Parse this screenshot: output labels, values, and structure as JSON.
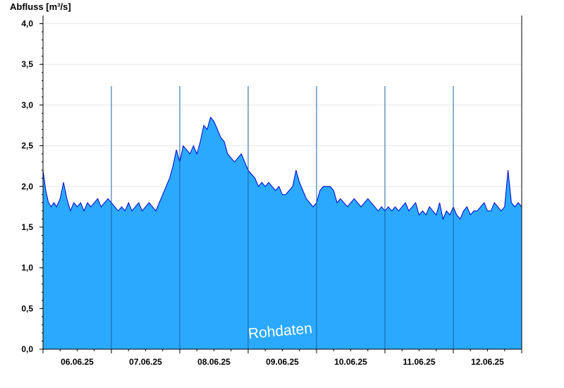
{
  "chart_data": {
    "type": "area",
    "title": "",
    "ylabel": "Abfluss [m³/s]",
    "xlabel": "",
    "watermark": "Rohdaten",
    "ylim": [
      0,
      4.1
    ],
    "yticks": [
      {
        "value": 0.0,
        "label": "0,0"
      },
      {
        "value": 0.5,
        "label": "0,5"
      },
      {
        "value": 1.0,
        "label": "1,0"
      },
      {
        "value": 1.5,
        "label": "1,5"
      },
      {
        "value": 2.0,
        "label": "2,0"
      },
      {
        "value": 2.5,
        "label": "2,5"
      },
      {
        "value": 3.0,
        "label": "3,0"
      },
      {
        "value": 3.5,
        "label": "3,5"
      },
      {
        "value": 4.0,
        "label": "4,0"
      }
    ],
    "xlim_days": [
      0,
      7
    ],
    "day_boundaries": [
      1,
      2,
      3,
      4,
      5,
      6
    ],
    "xticks": [
      {
        "day": 0.5,
        "label": "06.06.25"
      },
      {
        "day": 1.5,
        "label": "07.06.25"
      },
      {
        "day": 2.5,
        "label": "08.06.25"
      },
      {
        "day": 3.5,
        "label": "09.06.25"
      },
      {
        "day": 4.5,
        "label": "10.06.25"
      },
      {
        "day": 5.5,
        "label": "11.06.25"
      },
      {
        "day": 6.5,
        "label": "12.06.25"
      }
    ],
    "grid": true,
    "fill_color": "#2aa9ff",
    "line_color": "#0000cc",
    "series": [
      {
        "name": "",
        "x": [
          0,
          0.04,
          0.08,
          0.12,
          0.16,
          0.2,
          0.25,
          0.3,
          0.35,
          0.4,
          0.45,
          0.5,
          0.55,
          0.6,
          0.65,
          0.7,
          0.75,
          0.8,
          0.85,
          0.9,
          0.95,
          1.0,
          1.05,
          1.1,
          1.15,
          1.2,
          1.25,
          1.3,
          1.35,
          1.4,
          1.45,
          1.5,
          1.55,
          1.6,
          1.65,
          1.7,
          1.75,
          1.8,
          1.85,
          1.9,
          1.95,
          2.0,
          2.05,
          2.1,
          2.15,
          2.2,
          2.25,
          2.3,
          2.35,
          2.4,
          2.45,
          2.5,
          2.55,
          2.6,
          2.65,
          2.7,
          2.75,
          2.8,
          2.85,
          2.9,
          2.95,
          3.0,
          3.05,
          3.1,
          3.15,
          3.2,
          3.25,
          3.3,
          3.35,
          3.4,
          3.45,
          3.5,
          3.55,
          3.6,
          3.65,
          3.7,
          3.75,
          3.8,
          3.85,
          3.9,
          3.95,
          4.0,
          4.05,
          4.1,
          4.15,
          4.2,
          4.25,
          4.3,
          4.35,
          4.4,
          4.45,
          4.5,
          4.55,
          4.6,
          4.65,
          4.7,
          4.75,
          4.8,
          4.85,
          4.9,
          4.95,
          5.0,
          5.05,
          5.1,
          5.15,
          5.2,
          5.25,
          5.3,
          5.35,
          5.4,
          5.45,
          5.5,
          5.55,
          5.6,
          5.65,
          5.7,
          5.75,
          5.8,
          5.85,
          5.9,
          5.95,
          6.0,
          6.05,
          6.1,
          6.15,
          6.2,
          6.25,
          6.3,
          6.35,
          6.4,
          6.45,
          6.5,
          6.55,
          6.6,
          6.65,
          6.7,
          6.75,
          6.8,
          6.85,
          6.9,
          6.95,
          7.0
        ],
        "values": [
          2.2,
          1.95,
          1.8,
          1.75,
          1.8,
          1.75,
          1.85,
          2.05,
          1.85,
          1.7,
          1.8,
          1.75,
          1.8,
          1.7,
          1.8,
          1.75,
          1.8,
          1.85,
          1.75,
          1.8,
          1.85,
          1.8,
          1.75,
          1.7,
          1.75,
          1.7,
          1.8,
          1.7,
          1.75,
          1.8,
          1.7,
          1.75,
          1.8,
          1.75,
          1.7,
          1.8,
          1.9,
          2.0,
          2.1,
          2.25,
          2.45,
          2.3,
          2.5,
          2.45,
          2.4,
          2.5,
          2.4,
          2.55,
          2.75,
          2.7,
          2.85,
          2.8,
          2.7,
          2.6,
          2.55,
          2.4,
          2.35,
          2.3,
          2.35,
          2.4,
          2.3,
          2.2,
          2.15,
          2.1,
          2.0,
          2.05,
          2.0,
          2.05,
          2.0,
          1.95,
          2.0,
          1.9,
          1.9,
          1.95,
          2.0,
          2.2,
          2.05,
          1.95,
          1.85,
          1.8,
          1.75,
          1.8,
          1.95,
          2.0,
          2.0,
          2.0,
          1.95,
          1.8,
          1.85,
          1.8,
          1.75,
          1.8,
          1.85,
          1.8,
          1.75,
          1.8,
          1.85,
          1.8,
          1.75,
          1.7,
          1.75,
          1.7,
          1.75,
          1.7,
          1.75,
          1.7,
          1.75,
          1.8,
          1.7,
          1.75,
          1.8,
          1.65,
          1.7,
          1.65,
          1.75,
          1.7,
          1.65,
          1.8,
          1.6,
          1.7,
          1.65,
          1.75,
          1.65,
          1.6,
          1.7,
          1.75,
          1.65,
          1.7,
          1.7,
          1.75,
          1.8,
          1.7,
          1.7,
          1.8,
          1.75,
          1.7,
          1.75,
          2.2,
          1.8,
          1.75,
          1.8,
          1.75
        ]
      }
    ]
  }
}
